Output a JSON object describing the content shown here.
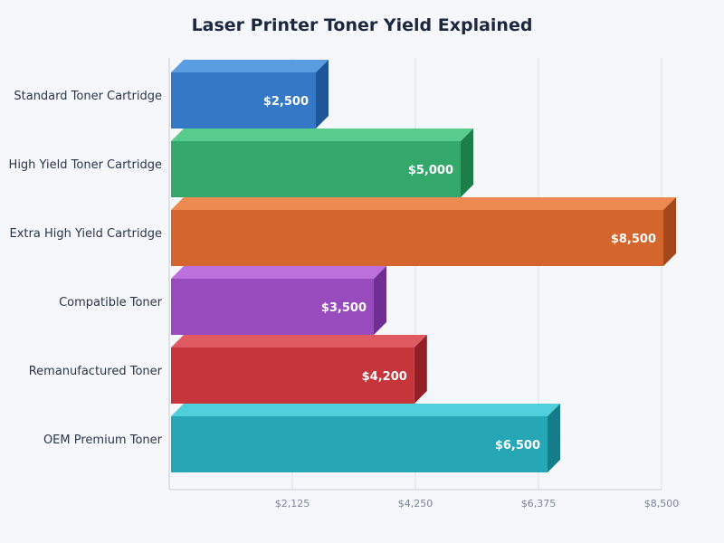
{
  "chart_data": {
    "type": "bar",
    "orientation": "horizontal",
    "title": "Laser Printer Toner Yield Explained",
    "xlabel": "",
    "ylabel": "",
    "xlim": [
      0,
      8500
    ],
    "ticks": [
      2125,
      4250,
      6375,
      8500
    ],
    "tick_labels": [
      "$2,125",
      "$4,250",
      "$6,375",
      "$8,500"
    ],
    "grid": true,
    "categories": [
      "Standard Toner Cartridge",
      "High Yield Toner Cartridge",
      "Extra High Yield Cartridge",
      "Compatible Toner",
      "Remanufactured Toner",
      "OEM Premium Toner"
    ],
    "values": [
      2500,
      5000,
      8500,
      3500,
      4200,
      6500
    ],
    "value_labels": [
      "$2,500",
      "$5,000",
      "$8,500",
      "$3,500",
      "$4,200",
      "$6,500"
    ],
    "colors": [
      {
        "front": "#3578c6",
        "top": "#5a9de0",
        "side": "#1f5697"
      },
      {
        "front": "#34a86a",
        "top": "#57cc8c",
        "side": "#1e7e49"
      },
      {
        "front": "#d4652d",
        "top": "#ec8a52",
        "side": "#a4471a"
      },
      {
        "front": "#984bbd",
        "top": "#bb70dc",
        "side": "#6f2f92"
      },
      {
        "front": "#c6353c",
        "top": "#e05a62",
        "side": "#951f26"
      },
      {
        "front": "#27a6b5",
        "top": "#4fcfdc",
        "side": "#157c89"
      }
    ]
  }
}
